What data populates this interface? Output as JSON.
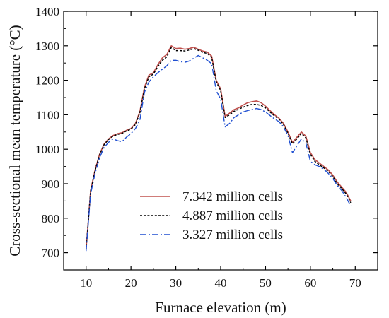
{
  "chart_data": {
    "type": "line",
    "title": "",
    "xlabel": "Furnace elevation (m)",
    "ylabel": "Cross-sectional mean temperature (°C)",
    "xlim": [
      5,
      75
    ],
    "ylim": [
      650,
      1400
    ],
    "xticks": [
      10,
      20,
      30,
      40,
      50,
      60,
      70
    ],
    "yticks": [
      700,
      800,
      900,
      1000,
      1100,
      1200,
      1300,
      1400
    ],
    "grid": false,
    "legend_position": "bottom-center",
    "series": [
      {
        "name": "7.342 million cells",
        "color": "#c0504d",
        "style": "solid",
        "x": [
          10,
          11,
          12,
          13,
          14,
          15,
          16,
          17,
          18,
          19,
          20,
          21,
          22,
          23,
          24,
          25,
          26,
          27,
          28,
          29,
          30,
          31,
          32,
          33,
          34,
          35,
          36,
          37,
          38,
          39,
          40,
          41,
          42,
          43,
          44,
          45,
          46,
          47,
          48,
          49,
          50,
          51,
          52,
          53,
          54,
          55,
          56,
          57,
          58,
          59,
          60,
          61,
          62,
          63,
          64,
          65,
          66,
          67,
          68,
          69
        ],
        "y": [
          710,
          880,
          940,
          985,
          1015,
          1030,
          1040,
          1045,
          1048,
          1055,
          1060,
          1075,
          1110,
          1180,
          1215,
          1222,
          1245,
          1265,
          1275,
          1300,
          1292,
          1293,
          1290,
          1292,
          1296,
          1290,
          1285,
          1282,
          1270,
          1200,
          1175,
          1095,
          1105,
          1115,
          1120,
          1128,
          1135,
          1138,
          1140,
          1135,
          1125,
          1112,
          1100,
          1090,
          1075,
          1050,
          1020,
          1035,
          1050,
          1038,
          990,
          970,
          960,
          950,
          940,
          925,
          905,
          890,
          875,
          850
        ]
      },
      {
        "name": "4.887 million cells",
        "color": "#000000",
        "style": "dotted",
        "x": [
          10,
          11,
          12,
          13,
          14,
          15,
          16,
          17,
          18,
          19,
          20,
          21,
          22,
          23,
          24,
          25,
          26,
          27,
          28,
          29,
          30,
          31,
          32,
          33,
          34,
          35,
          36,
          37,
          38,
          39,
          40,
          41,
          42,
          43,
          44,
          45,
          46,
          47,
          48,
          49,
          50,
          51,
          52,
          53,
          54,
          55,
          56,
          57,
          58,
          59,
          60,
          61,
          62,
          63,
          64,
          65,
          66,
          67,
          68,
          69
        ],
        "y": [
          708,
          878,
          938,
          983,
          1013,
          1028,
          1038,
          1043,
          1046,
          1053,
          1058,
          1072,
          1106,
          1175,
          1210,
          1218,
          1240,
          1258,
          1268,
          1295,
          1286,
          1286,
          1285,
          1288,
          1292,
          1287,
          1281,
          1278,
          1266,
          1196,
          1170,
          1092,
          1100,
          1110,
          1116,
          1122,
          1127,
          1130,
          1130,
          1127,
          1120,
          1108,
          1097,
          1087,
          1072,
          1047,
          1016,
          1030,
          1046,
          1033,
          985,
          965,
          955,
          946,
          936,
          921,
          900,
          886,
          870,
          845
        ]
      },
      {
        "name": "3.327 million cells",
        "color": "#1f4fd1",
        "style": "dashdot",
        "x": [
          10,
          11,
          12,
          13,
          14,
          15,
          16,
          17,
          18,
          19,
          20,
          21,
          22,
          23,
          24,
          25,
          26,
          27,
          28,
          29,
          30,
          31,
          32,
          33,
          34,
          35,
          36,
          37,
          38,
          39,
          40,
          41,
          42,
          43,
          44,
          45,
          46,
          47,
          48,
          49,
          50,
          51,
          52,
          53,
          54,
          55,
          56,
          57,
          58,
          59,
          60,
          61,
          62,
          63,
          64,
          65,
          66,
          67,
          68,
          69
        ],
        "y": [
          705,
          870,
          930,
          975,
          1005,
          1020,
          1030,
          1025,
          1022,
          1035,
          1045,
          1060,
          1085,
          1165,
          1195,
          1210,
          1222,
          1232,
          1242,
          1258,
          1258,
          1254,
          1252,
          1256,
          1264,
          1272,
          1265,
          1258,
          1248,
          1170,
          1145,
          1065,
          1075,
          1092,
          1100,
          1108,
          1112,
          1115,
          1118,
          1115,
          1108,
          1098,
          1088,
          1080,
          1065,
          1040,
          990,
          1010,
          1030,
          1018,
          965,
          955,
          950,
          942,
          930,
          915,
          895,
          880,
          860,
          835
        ]
      }
    ]
  }
}
